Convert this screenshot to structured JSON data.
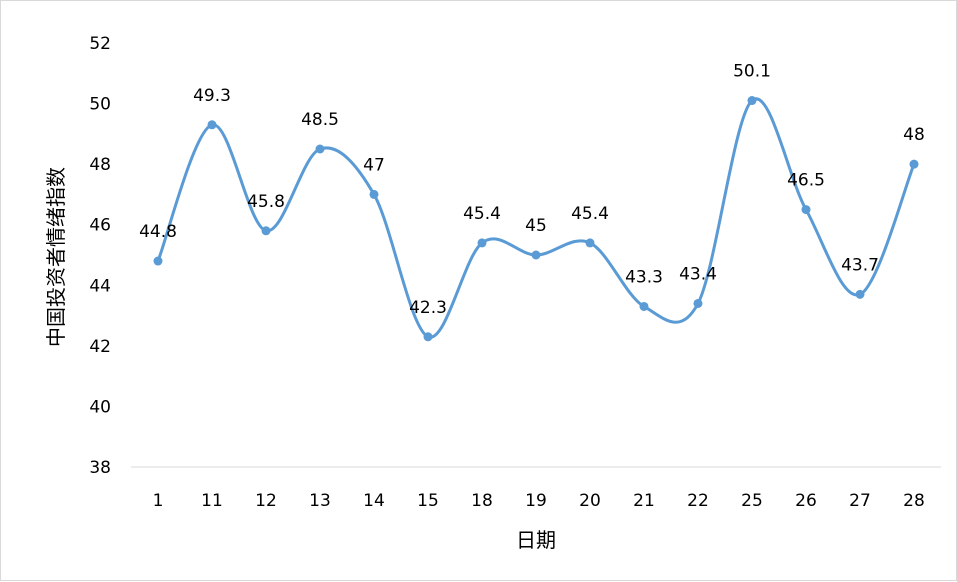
{
  "chart_data": {
    "type": "line",
    "title": "",
    "xlabel": "日期",
    "ylabel": "中国投资者情绪指数",
    "categories": [
      "1",
      "11",
      "12",
      "13",
      "14",
      "15",
      "18",
      "19",
      "20",
      "21",
      "22",
      "25",
      "26",
      "27",
      "28"
    ],
    "series": [
      {
        "values": [
          44.8,
          49.3,
          45.8,
          48.5,
          47,
          42.3,
          45.4,
          45,
          45.4,
          43.3,
          43.4,
          50.1,
          46.5,
          43.7,
          48
        ],
        "color": "#5b9bd5"
      }
    ],
    "data_labels": [
      "44.8",
      "49.3",
      "45.8",
      "48.5",
      "47",
      "42.3",
      "45.4",
      "45",
      "45.4",
      "43.3",
      "43.4",
      "50.1",
      "46.5",
      "43.7",
      "48"
    ],
    "ylim": [
      38,
      52
    ],
    "yticks": [
      "38",
      "40",
      "42",
      "44",
      "46",
      "48",
      "50",
      "52"
    ],
    "grid": false,
    "legend": "none",
    "smooth": true
  }
}
